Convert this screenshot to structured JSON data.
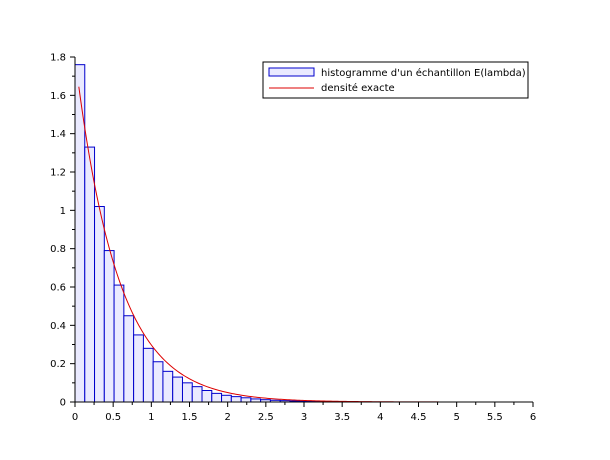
{
  "chart_data": {
    "type": "bar",
    "xlim": [
      0,
      6
    ],
    "ylim": [
      0,
      1.8
    ],
    "xticks": [
      "0",
      "0.5",
      "1",
      "1.5",
      "2",
      "2.5",
      "3",
      "3.5",
      "4",
      "4.5",
      "5",
      "5.5",
      "6"
    ],
    "yticks": [
      "0",
      "0.2",
      "0.4",
      "0.6",
      "0.8",
      "1",
      "1.2",
      "1.4",
      "1.6",
      "1.8"
    ],
    "grid": false,
    "legend_position": "top-right",
    "bin_width": 0.128,
    "bin_start": 0.0,
    "series": [
      {
        "name": "histogramme d'un échantillon E(lambda)",
        "kind": "histogram",
        "color": "#0000cc",
        "fill": "#eaeaff",
        "values": [
          1.76,
          1.33,
          1.02,
          0.79,
          0.61,
          0.45,
          0.35,
          0.28,
          0.21,
          0.16,
          0.13,
          0.1,
          0.08,
          0.06,
          0.045,
          0.035,
          0.028,
          0.022,
          0.016,
          0.012,
          0.009,
          0.007,
          0.005,
          0.004,
          0.003,
          0.002
        ]
      },
      {
        "name": "densité exacte",
        "kind": "line",
        "color": "#dd0000",
        "rate": 1.8,
        "x_range": [
          0.05,
          5.3
        ]
      }
    ]
  }
}
